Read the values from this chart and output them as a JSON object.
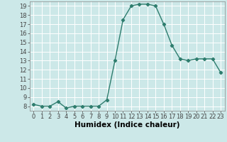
{
  "x": [
    0,
    1,
    2,
    3,
    4,
    5,
    6,
    7,
    8,
    9,
    10,
    11,
    12,
    13,
    14,
    15,
    16,
    17,
    18,
    19,
    20,
    21,
    22,
    23
  ],
  "y": [
    8.2,
    8.0,
    8.0,
    8.5,
    7.8,
    8.0,
    8.0,
    8.0,
    8.0,
    8.7,
    13.0,
    17.5,
    19.0,
    19.2,
    19.2,
    19.0,
    17.0,
    14.7,
    13.2,
    13.0,
    13.2,
    13.2,
    13.2,
    11.7
  ],
  "line_color": "#2e7d6e",
  "marker": "D",
  "markersize": 2.2,
  "linewidth": 1.0,
  "xlabel": "Humidex (Indice chaleur)",
  "xlim": [
    -0.5,
    23.5
  ],
  "ylim": [
    7.5,
    19.5
  ],
  "yticks": [
    8,
    9,
    10,
    11,
    12,
    13,
    14,
    15,
    16,
    17,
    18,
    19
  ],
  "xticks": [
    0,
    1,
    2,
    3,
    4,
    5,
    6,
    7,
    8,
    9,
    10,
    11,
    12,
    13,
    14,
    15,
    16,
    17,
    18,
    19,
    20,
    21,
    22,
    23
  ],
  "bg_color": "#cce8e8",
  "grid_color": "#ffffff",
  "xlabel_fontsize": 7.5,
  "tick_fontsize": 6.0
}
